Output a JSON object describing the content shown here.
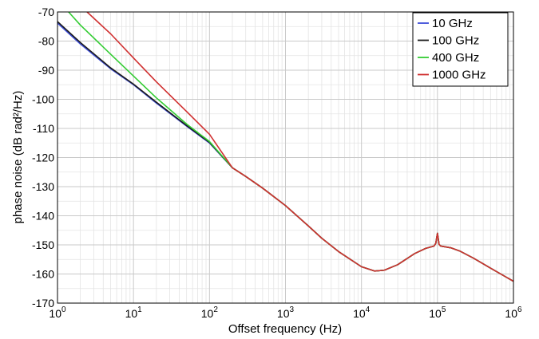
{
  "chart_data": {
    "type": "line",
    "xlabel": "Offset frequency (Hz)",
    "ylabel": "phase noise (dB rad²/Hz)",
    "xscale": "log",
    "xlim": [
      1,
      1000000
    ],
    "ylim": [
      -170,
      -70
    ],
    "grid": true,
    "legend_position": "top-right",
    "x_ticks": [
      {
        "base": "10",
        "exp": "0"
      },
      {
        "base": "10",
        "exp": "1"
      },
      {
        "base": "10",
        "exp": "2"
      },
      {
        "base": "10",
        "exp": "3"
      },
      {
        "base": "10",
        "exp": "4"
      },
      {
        "base": "10",
        "exp": "5"
      },
      {
        "base": "10",
        "exp": "6"
      }
    ],
    "y_ticks": [
      -70,
      -80,
      -90,
      -100,
      -110,
      -120,
      -130,
      -140,
      -150,
      -160,
      -170
    ],
    "colors": {
      "10 GHz": "#3b4bd8",
      "100 GHz": "#1a1a1a",
      "400 GHz": "#33cc33",
      "1000 GHz": "#d03030"
    },
    "common_tail": {
      "x": [
        200,
        300,
        500,
        1000,
        2000,
        3000,
        5000,
        10000,
        15000,
        20000,
        30000,
        50000,
        70000,
        90000,
        95000,
        100000,
        105000,
        110000,
        150000,
        200000,
        300000,
        500000,
        1000000
      ],
      "y": [
        -123.5,
        -126.5,
        -130.5,
        -136.5,
        -143.5,
        -147.7,
        -152.3,
        -157.5,
        -159.0,
        -158.7,
        -156.8,
        -153.0,
        -151.2,
        -150.4,
        -149.5,
        -146.0,
        -149.8,
        -150.4,
        -151.0,
        -152.2,
        -154.6,
        -158.0,
        -162.5
      ]
    },
    "series": [
      {
        "name": "10 GHz",
        "x": [
          1,
          2,
          5,
          10,
          20,
          50,
          100,
          200
        ],
        "y": [
          -73.8,
          -81.0,
          -89.5,
          -95.0,
          -101.3,
          -109.2,
          -115.0,
          -121.8
        ]
      },
      {
        "name": "100 GHz",
        "x": [
          1,
          2,
          5,
          10,
          20,
          50,
          100,
          200
        ],
        "y": [
          -73.3,
          -80.5,
          -89.2,
          -94.8,
          -101.0,
          -109.0,
          -114.8,
          -121.8
        ]
      },
      {
        "name": "400 GHz",
        "x": [
          1.4,
          2,
          5,
          10,
          20,
          50,
          100,
          200
        ],
        "y": [
          -70.0,
          -74.5,
          -84.5,
          -92.0,
          -99.5,
          -108.5,
          -114.5,
          -121.8
        ]
      },
      {
        "name": "1000 GHz",
        "x": [
          2.45,
          5,
          10,
          20,
          50,
          100,
          200
        ],
        "y": [
          -70.0,
          -77.5,
          -85.8,
          -94.0,
          -104.2,
          -112.0,
          -121.8
        ]
      }
    ]
  }
}
